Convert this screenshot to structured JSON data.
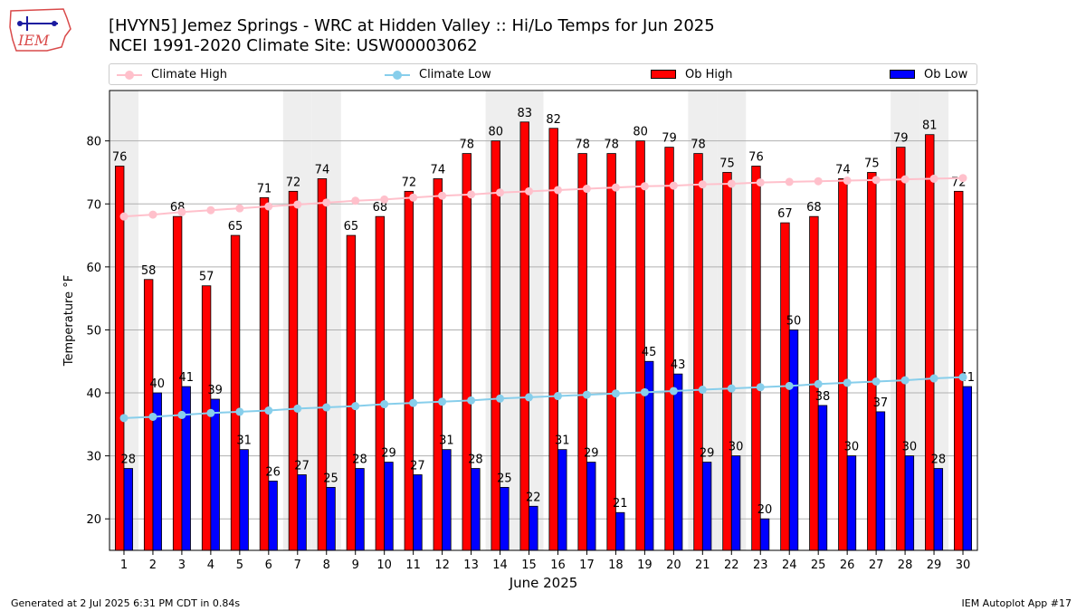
{
  "header": {
    "title_line1": "[HVYN5] Jemez Springs - WRC at Hidden Valley :: Hi/Lo Temps for Jun 2025",
    "title_line2": "NCEI 1991-2020 Climate Site: USW00003062",
    "logo_text": "IEM"
  },
  "legend": {
    "climate_high": "Climate High",
    "climate_low": "Climate Low",
    "ob_high": "Ob High",
    "ob_low": "Ob Low"
  },
  "footer": {
    "left": "Generated at 2 Jul 2025 6:31 PM CDT in 0.84s",
    "right": "IEM Autoplot App #17"
  },
  "colors": {
    "ob_high": "#ff0000",
    "ob_low": "#0000ff",
    "climate_high": "#ffc0cb",
    "climate_low": "#87ceeb",
    "weekend_band": "#eeeeee",
    "grid": "#b0b0b0"
  },
  "chart_data": {
    "type": "bar",
    "xlabel": "June 2025",
    "ylabel": "Temperature °F",
    "ylim": [
      15,
      88
    ],
    "yticks": [
      20,
      30,
      40,
      50,
      60,
      70,
      80
    ],
    "grid": "horizontal",
    "legend_position": "top",
    "categories": [
      1,
      2,
      3,
      4,
      5,
      6,
      7,
      8,
      9,
      10,
      11,
      12,
      13,
      14,
      15,
      16,
      17,
      18,
      19,
      20,
      21,
      22,
      23,
      24,
      25,
      26,
      27,
      28,
      29,
      30
    ],
    "shaded_days": [
      1,
      7,
      8,
      14,
      15,
      21,
      22,
      28,
      29
    ],
    "series": [
      {
        "name": "Ob High",
        "kind": "bar",
        "values": [
          76,
          58,
          68,
          57,
          65,
          71,
          72,
          74,
          65,
          68,
          72,
          74,
          78,
          80,
          83,
          82,
          78,
          78,
          80,
          79,
          78,
          75,
          76,
          67,
          68,
          74,
          75,
          79,
          81,
          72
        ]
      },
      {
        "name": "Ob Low",
        "kind": "bar",
        "values": [
          28,
          40,
          41,
          39,
          31,
          26,
          27,
          25,
          28,
          29,
          27,
          31,
          28,
          25,
          22,
          31,
          29,
          21,
          45,
          43,
          29,
          30,
          20,
          50,
          38,
          30,
          37,
          30,
          28,
          41
        ]
      },
      {
        "name": "Climate High",
        "kind": "line",
        "values": [
          68.0,
          68.3,
          68.7,
          69.0,
          69.3,
          69.6,
          69.9,
          70.2,
          70.5,
          70.7,
          71.0,
          71.3,
          71.5,
          71.8,
          72.0,
          72.2,
          72.4,
          72.6,
          72.8,
          72.9,
          73.1,
          73.2,
          73.4,
          73.5,
          73.6,
          73.7,
          73.8,
          73.9,
          74.0,
          74.1
        ]
      },
      {
        "name": "Climate Low",
        "kind": "line",
        "values": [
          36.0,
          36.2,
          36.5,
          36.8,
          37.0,
          37.2,
          37.5,
          37.7,
          37.9,
          38.2,
          38.4,
          38.6,
          38.8,
          39.1,
          39.3,
          39.5,
          39.7,
          39.9,
          40.1,
          40.3,
          40.5,
          40.7,
          40.9,
          41.1,
          41.4,
          41.6,
          41.8,
          42.0,
          42.3,
          42.5
        ]
      }
    ]
  }
}
